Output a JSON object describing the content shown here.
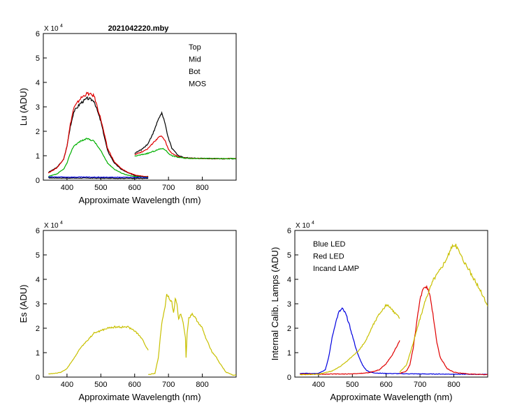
{
  "figure_title": "2021042220.mby",
  "chart_data": [
    {
      "type": "line",
      "id": "lu",
      "title": "2021042220.mby",
      "xlabel": "Approximate Wavelength (nm)",
      "ylabel": "Lu (ADU)",
      "multiplier": "X 10",
      "multiplier_exp": "4",
      "xlim": [
        330,
        900
      ],
      "ylim": [
        0,
        60000
      ],
      "xticks": [
        400,
        500,
        600,
        700,
        800
      ],
      "yticks": [
        0,
        1,
        2,
        3,
        4,
        5,
        6
      ],
      "legend_position": "top-right",
      "legend": [
        {
          "label": "Top",
          "color": "#000000"
        },
        {
          "label": "Mid",
          "color": "#e00000"
        },
        {
          "label": "Bot",
          "color": "#00b000"
        },
        {
          "label": "MOS",
          "color": "#0000e0"
        }
      ],
      "series": [
        {
          "name": "Top",
          "color": "#000000",
          "segments": [
            {
              "x": [
                345,
                370,
                390,
                400,
                410,
                420,
                440,
                460,
                480,
                500,
                520,
                540,
                560,
                580,
                600,
                620,
                640
              ],
              "y": [
                3200,
                5200,
                8500,
                14000,
                22000,
                28000,
                31500,
                33500,
                32500,
                24000,
                12000,
                7000,
                4500,
                3000,
                2000,
                1600,
                1400
              ]
            },
            {
              "x": [
                600,
                620,
                640,
                660,
                670,
                680,
                690,
                700,
                710,
                730,
                750,
                780,
                800,
                850,
                900
              ],
              "y": [
                11000,
                12500,
                15000,
                21000,
                25000,
                27500,
                23000,
                17000,
                13000,
                10000,
                9200,
                9000,
                8900,
                8800,
                8800
              ]
            },
            {
              "x": [
                345,
                400,
                500,
                600,
                640
              ],
              "y": [
                900,
                850,
                800,
                750,
                700
              ]
            }
          ]
        },
        {
          "name": "Mid",
          "color": "#e00000",
          "segments": [
            {
              "x": [
                345,
                370,
                390,
                400,
                410,
                420,
                440,
                460,
                480,
                500,
                520,
                540,
                560,
                580,
                600,
                620,
                640
              ],
              "y": [
                3000,
                5000,
                8500,
                14000,
                23000,
                29500,
                33500,
                35500,
                34500,
                25000,
                13000,
                7500,
                4800,
                3200,
                2100,
                1700,
                1500
              ]
            },
            {
              "x": [
                600,
                620,
                640,
                660,
                670,
                680,
                690,
                700,
                710,
                730,
                750,
                780,
                800,
                850,
                900
              ],
              "y": [
                10500,
                11500,
                13000,
                16000,
                17500,
                18000,
                16000,
                12500,
                11000,
                9500,
                9000,
                8900,
                8900,
                8800,
                8800
              ]
            }
          ]
        },
        {
          "name": "Bot",
          "color": "#00b000",
          "segments": [
            {
              "x": [
                345,
                370,
                390,
                400,
                410,
                420,
                440,
                460,
                480,
                500,
                520,
                540,
                560,
                580,
                600,
                620,
                640
              ],
              "y": [
                1500,
                2500,
                4500,
                7000,
                11000,
                14000,
                16000,
                17000,
                16000,
                12000,
                7000,
                4500,
                3000,
                2000,
                1500,
                1300,
                1200
              ]
            },
            {
              "x": [
                600,
                620,
                640,
                660,
                670,
                680,
                690,
                700,
                710,
                730,
                750,
                780,
                800,
                850,
                900
              ],
              "y": [
                9800,
                10400,
                11000,
                12000,
                12500,
                13000,
                12500,
                11000,
                10000,
                9300,
                9000,
                8900,
                8900,
                8800,
                8800
              ]
            }
          ]
        },
        {
          "name": "MOS",
          "color": "#0000e0",
          "segments": [
            {
              "x": [
                345,
                400,
                500,
                600,
                640
              ],
              "y": [
                1300,
                1250,
                1200,
                1150,
                1100
              ]
            }
          ]
        }
      ]
    },
    {
      "type": "line",
      "id": "es",
      "xlabel": "Approximate Wavelength (nm)",
      "ylabel": "Es (ADU)",
      "multiplier": "X 10",
      "multiplier_exp": "4",
      "xlim": [
        330,
        900
      ],
      "ylim": [
        0,
        60000
      ],
      "xticks": [
        400,
        500,
        600,
        700,
        800
      ],
      "yticks": [
        0,
        1,
        2,
        3,
        4,
        5,
        6
      ],
      "series": [
        {
          "name": "Es",
          "color": "#c8c000",
          "segments": [
            {
              "x": [
                345,
                380,
                400,
                420,
                440,
                460,
                480,
                500,
                520,
                540,
                560,
                580,
                600,
                620,
                640
              ],
              "y": [
                1300,
                1800,
                3500,
                7500,
                12000,
                15000,
                18000,
                19000,
                20000,
                20500,
                20500,
                20500,
                19000,
                16000,
                11000
              ]
            },
            {
              "x": [
                640,
                660,
                670,
                680,
                690,
                695,
                700,
                710,
                715,
                720,
                725,
                730,
                735,
                740,
                745,
                750,
                752,
                755,
                760,
                770,
                780,
                790,
                800,
                810,
                820,
                830,
                840,
                850,
                860,
                870,
                880,
                890,
                900
              ],
              "y": [
                1000,
                1500,
                8000,
                22000,
                29000,
                34000,
                33000,
                30500,
                26000,
                32000,
                30000,
                23500,
                26000,
                24000,
                21000,
                16000,
                8000,
                18000,
                24000,
                26000,
                24000,
                22000,
                20000,
                16000,
                13000,
                10000,
                8500,
                6000,
                4000,
                2000,
                1500,
                800,
                800
              ]
            }
          ]
        }
      ]
    },
    {
      "type": "line",
      "id": "calib",
      "xlabel": "Approximate Wavelength (nm)",
      "ylabel": "Internal Calib. Lamps  (ADU)",
      "multiplier": "X 10",
      "multiplier_exp": "4",
      "xlim": [
        330,
        900
      ],
      "ylim": [
        0,
        60000
      ],
      "xticks": [
        400,
        500,
        600,
        700,
        800
      ],
      "yticks": [
        0,
        1,
        2,
        3,
        4,
        5,
        6
      ],
      "legend_position": "top-left",
      "legend": [
        {
          "label": "Blue LED",
          "color": "#0000e0"
        },
        {
          "label": "Red LED",
          "color": "#e00000"
        },
        {
          "label": "Incand LAMP",
          "color": "#c8c000"
        }
      ],
      "series": [
        {
          "name": "Blue LED",
          "color": "#0000e0",
          "segments": [
            {
              "x": [
                345,
                380,
                400,
                420,
                430,
                440,
                450,
                460,
                470,
                480,
                490,
                500,
                510,
                520,
                530,
                540,
                550,
                560,
                580,
                600,
                640,
                700,
                800,
                900
              ],
              "y": [
                1500,
                1500,
                1600,
                3000,
                8000,
                16000,
                22000,
                26500,
                28000,
                26000,
                22000,
                17000,
                12000,
                8000,
                5000,
                3000,
                2200,
                1800,
                1600,
                1500,
                1400,
                1300,
                1200,
                1100
              ]
            }
          ]
        },
        {
          "name": "Red LED",
          "color": "#e00000",
          "segments": [
            {
              "x": [
                345,
                400,
                500,
                550,
                580,
                600,
                620,
                640
              ],
              "y": [
                1200,
                1200,
                1300,
                1800,
                3000,
                5500,
                9500,
                15000
              ]
            },
            {
              "x": [
                640,
                660,
                670,
                680,
                690,
                700,
                710,
                720,
                730,
                740,
                750,
                760,
                780,
                800,
                840,
                900
              ],
              "y": [
                1500,
                2500,
                5000,
                12000,
                22000,
                32000,
                36500,
                37000,
                33000,
                24000,
                14000,
                8000,
                3500,
                2000,
                1300,
                1000
              ]
            }
          ]
        },
        {
          "name": "Incand LAMP",
          "color": "#c8c000",
          "segments": [
            {
              "x": [
                345,
                400,
                440,
                460,
                480,
                500,
                520,
                540,
                560,
                580,
                600,
                610,
                620,
                640
              ],
              "y": [
                1000,
                1200,
                2500,
                4000,
                6000,
                8500,
                11000,
                15000,
                21000,
                26000,
                29500,
                29000,
                27000,
                24000
              ]
            },
            {
              "x": [
                640,
                660,
                680,
                700,
                720,
                740,
                760,
                780,
                800,
                810,
                820,
                840,
                860,
                880,
                900
              ],
              "y": [
                2000,
                5000,
                14000,
                24000,
                33000,
                40000,
                44000,
                49000,
                54500,
                53000,
                50000,
                45000,
                40000,
                35000,
                29000
              ]
            }
          ]
        }
      ]
    }
  ]
}
